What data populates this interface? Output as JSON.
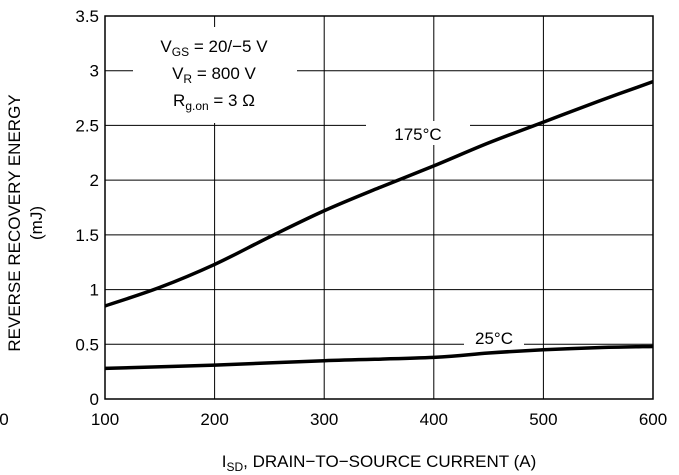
{
  "chart_data": {
    "type": "line",
    "xlabel_main": "I",
    "xlabel_sub": "SD",
    "xlabel_rest": ", DRAIN−TO−SOURCE CURRENT (A)",
    "ylabel_line1": "REVERSE RECOVERY ENERGY",
    "ylabel_line2": "(mJ)",
    "xlim": [
      100,
      600
    ],
    "ylim": [
      0,
      3.5
    ],
    "x_ticks": [
      "100",
      "200",
      "300",
      "400",
      "500",
      "600"
    ],
    "y_ticks": [
      "0",
      "0.5",
      "1",
      "1.5",
      "2",
      "2.5",
      "3",
      "3.5"
    ],
    "cut_tick": "0",
    "grid": true,
    "conditions": {
      "vgs_main": "V",
      "vgs_sub": "GS",
      "vgs_rest": " = 20/−5 V",
      "vr_main": "V",
      "vr_sub": "R",
      "vr_rest": " = 800 V",
      "rg_main": "R",
      "rg_sub": "g.on",
      "rg_rest": " = 3 Ω"
    },
    "series": [
      {
        "name": "175°C",
        "x": [
          100,
          150,
          200,
          250,
          300,
          350,
          400,
          450,
          500,
          550,
          600
        ],
        "values": [
          0.85,
          1.02,
          1.23,
          1.48,
          1.72,
          1.93,
          2.13,
          2.34,
          2.53,
          2.72,
          2.9
        ]
      },
      {
        "name": "25°C",
        "x": [
          100,
          200,
          300,
          400,
          450,
          500,
          550,
          600
        ],
        "values": [
          0.28,
          0.31,
          0.35,
          0.38,
          0.42,
          0.45,
          0.47,
          0.48
        ]
      }
    ]
  }
}
